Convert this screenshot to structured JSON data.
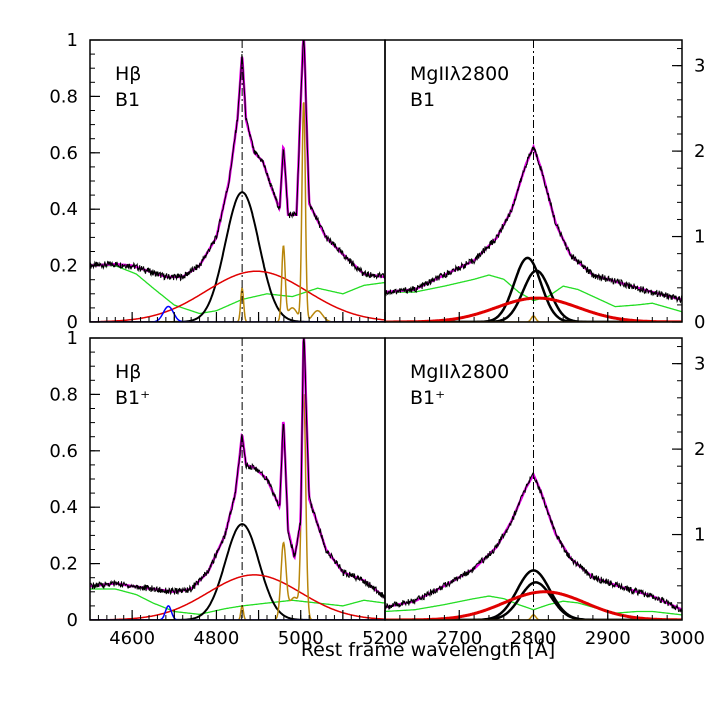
{
  "chart_data": {
    "type": "line",
    "xlabel": "Rest frame wavelength [Å]",
    "colors": {
      "observed": "#000000",
      "fit_total": "#e000e0",
      "broad_component": "#000000",
      "very_broad_component": "#e00000",
      "feii_template": "#22dd22",
      "narrow_lines": "#b8860b",
      "heii": "#0000ff"
    },
    "panels": [
      {
        "id": "hb-b1",
        "label_line1": "Hβ",
        "label_line2": "B1",
        "x_ticks": [],
        "y_ticks": [
          "0",
          "0.2",
          "0.4",
          "0.6",
          "0.8",
          "1"
        ],
        "y_tick_values": [
          0,
          0.2,
          0.4,
          0.6,
          0.8,
          1
        ],
        "y_axis_side": "left",
        "xlim": [
          4500,
          5200
        ],
        "ylim": [
          0,
          1
        ],
        "reference_line": 4861,
        "continuum": [
          [
            4500,
            0.2
          ],
          [
            4560,
            0.205
          ],
          [
            4600,
            0.2
          ],
          [
            4640,
            0.18
          ],
          [
            4680,
            0.16
          ],
          [
            4720,
            0.16
          ],
          [
            4760,
            0.2
          ],
          [
            4800,
            0.3
          ],
          [
            4830,
            0.5
          ],
          [
            4850,
            0.72
          ],
          [
            4861,
            0.95
          ],
          [
            4870,
            0.72
          ],
          [
            4890,
            0.6
          ],
          [
            4910,
            0.57
          ],
          [
            4930,
            0.48
          ],
          [
            4950,
            0.4
          ],
          [
            4959,
            0.63
          ],
          [
            4970,
            0.38
          ],
          [
            4990,
            0.38
          ],
          [
            5007,
            1.05
          ],
          [
            5020,
            0.42
          ],
          [
            5060,
            0.3
          ],
          [
            5100,
            0.24
          ],
          [
            5150,
            0.17
          ],
          [
            5200,
            0.16
          ]
        ],
        "components": [
          {
            "name": "broad",
            "color": "#000000",
            "gaussians": [
              {
                "center": 4861,
                "amp": 0.46,
                "sigma": 40
              }
            ],
            "width": 2
          },
          {
            "name": "very_broad",
            "color": "#e00000",
            "gaussians": [
              {
                "center": 4895,
                "amp": 0.18,
                "sigma": 120
              }
            ],
            "width": 1.5
          },
          {
            "name": "narrow",
            "color": "#b8860b",
            "gaussians": [
              {
                "center": 4861,
                "amp": 0.12,
                "sigma": 3.5
              },
              {
                "center": 4959,
                "amp": 0.26,
                "sigma": 4
              },
              {
                "center": 5007,
                "amp": 0.78,
                "sigma": 4
              },
              {
                "center": 4980,
                "amp": 0.05,
                "sigma": 12
              },
              {
                "center": 5040,
                "amp": 0.04,
                "sigma": 12
              }
            ],
            "width": 1.5
          },
          {
            "name": "heii",
            "color": "#0000ff",
            "gaussians": [
              {
                "center": 4686,
                "amp": 0.055,
                "sigma": 12
              }
            ],
            "width": 1.5
          }
        ],
        "feii": {
          "color": "#22dd22",
          "points": [
            [
              4500,
              0.2
            ],
            [
              4560,
              0.2
            ],
            [
              4610,
              0.17
            ],
            [
              4650,
              0.12
            ],
            [
              4700,
              0.06
            ],
            [
              4760,
              0.03
            ],
            [
              4800,
              0.04
            ],
            [
              4861,
              0.08
            ],
            [
              4920,
              0.1
            ],
            [
              4980,
              0.09
            ],
            [
              5040,
              0.12
            ],
            [
              5100,
              0.1
            ],
            [
              5150,
              0.13
            ],
            [
              5200,
              0.14
            ]
          ]
        }
      },
      {
        "id": "mg-b1",
        "label_line1": "MgIIλ2800",
        "label_line2": "B1",
        "x_ticks": [],
        "y_ticks": [
          "0",
          "1",
          "2",
          "3"
        ],
        "y_tick_values": [
          0,
          1,
          2,
          3
        ],
        "y_axis_side": "right",
        "xlim": [
          2600,
          3000
        ],
        "ylim": [
          0,
          3.3
        ],
        "reference_line": 2800,
        "continuum": [
          [
            2600,
            0.35
          ],
          [
            2640,
            0.38
          ],
          [
            2680,
            0.55
          ],
          [
            2720,
            0.72
          ],
          [
            2750,
            0.98
          ],
          [
            2770,
            1.3
          ],
          [
            2790,
            1.85
          ],
          [
            2800,
            2.05
          ],
          [
            2810,
            1.8
          ],
          [
            2830,
            1.15
          ],
          [
            2850,
            0.78
          ],
          [
            2880,
            0.55
          ],
          [
            2920,
            0.45
          ],
          [
            2960,
            0.35
          ],
          [
            3000,
            0.26
          ]
        ],
        "components": [
          {
            "name": "broad_a",
            "color": "#000000",
            "gaussians": [
              {
                "center": 2792,
                "amp": 0.75,
                "sigma": 18
              }
            ],
            "width": 2.5
          },
          {
            "name": "broad_b",
            "color": "#000000",
            "gaussians": [
              {
                "center": 2804,
                "amp": 0.6,
                "sigma": 18
              }
            ],
            "width": 2.5
          },
          {
            "name": "very_broad",
            "color": "#e00000",
            "gaussians": [
              {
                "center": 2805,
                "amp": 0.28,
                "sigma": 55
              }
            ],
            "width": 3
          },
          {
            "name": "narrow",
            "color": "#b8860b",
            "gaussians": [
              {
                "center": 2800,
                "amp": 0.07,
                "sigma": 3
              }
            ],
            "width": 1.5
          }
        ],
        "feii": {
          "color": "#22dd22",
          "points": [
            [
              2600,
              0.35
            ],
            [
              2640,
              0.35
            ],
            [
              2680,
              0.42
            ],
            [
              2720,
              0.5
            ],
            [
              2740,
              0.55
            ],
            [
              2760,
              0.5
            ],
            [
              2780,
              0.35
            ],
            [
              2800,
              0.25
            ],
            [
              2820,
              0.3
            ],
            [
              2840,
              0.42
            ],
            [
              2860,
              0.38
            ],
            [
              2880,
              0.3
            ],
            [
              2910,
              0.18
            ],
            [
              2940,
              0.2
            ],
            [
              2960,
              0.22
            ],
            [
              3000,
              0.12
            ]
          ]
        }
      },
      {
        "id": "hb-b1plus",
        "label_line1": "Hβ",
        "label_line2": "B1⁺",
        "x_ticks": [
          "4600",
          "4800",
          "5000",
          "5200"
        ],
        "x_tick_values": [
          4600,
          4800,
          5000,
          5200
        ],
        "y_ticks": [
          "0",
          "0.2",
          "0.4",
          "0.6",
          "0.8",
          "1"
        ],
        "y_tick_values": [
          0,
          0.2,
          0.4,
          0.6,
          0.8,
          1
        ],
        "y_axis_side": "left",
        "xlim": [
          4500,
          5200
        ],
        "ylim": [
          0,
          1
        ],
        "reference_line": 4861,
        "continuum": [
          [
            4500,
            0.12
          ],
          [
            4560,
            0.13
          ],
          [
            4600,
            0.12
          ],
          [
            4650,
            0.11
          ],
          [
            4700,
            0.1
          ],
          [
            4740,
            0.11
          ],
          [
            4780,
            0.17
          ],
          [
            4820,
            0.3
          ],
          [
            4845,
            0.45
          ],
          [
            4861,
            0.66
          ],
          [
            4870,
            0.55
          ],
          [
            4890,
            0.54
          ],
          [
            4920,
            0.5
          ],
          [
            4950,
            0.4
          ],
          [
            4959,
            0.72
          ],
          [
            4970,
            0.32
          ],
          [
            4985,
            0.22
          ],
          [
            5000,
            0.35
          ],
          [
            5007,
            1.05
          ],
          [
            5020,
            0.43
          ],
          [
            5060,
            0.25
          ],
          [
            5100,
            0.17
          ],
          [
            5150,
            0.14
          ],
          [
            5200,
            0.08
          ]
        ],
        "components": [
          {
            "name": "broad",
            "color": "#000000",
            "gaussians": [
              {
                "center": 4861,
                "amp": 0.34,
                "sigma": 40
              }
            ],
            "width": 2
          },
          {
            "name": "very_broad",
            "color": "#e00000",
            "gaussians": [
              {
                "center": 4890,
                "amp": 0.16,
                "sigma": 110
              }
            ],
            "width": 1.5
          },
          {
            "name": "narrow",
            "color": "#b8860b",
            "gaussians": [
              {
                "center": 4861,
                "amp": 0.05,
                "sigma": 3
              },
              {
                "center": 4959,
                "amp": 0.26,
                "sigma": 6
              },
              {
                "center": 5007,
                "amp": 0.78,
                "sigma": 5
              },
              {
                "center": 4985,
                "amp": 0.08,
                "sigma": 14
              }
            ],
            "width": 1.5
          },
          {
            "name": "heii",
            "color": "#0000ff",
            "gaussians": [
              {
                "center": 4686,
                "amp": 0.05,
                "sigma": 7
              }
            ],
            "width": 1.5
          }
        ],
        "feii": {
          "color": "#22dd22",
          "points": [
            [
              4500,
              0.11
            ],
            [
              4560,
              0.11
            ],
            [
              4610,
              0.09
            ],
            [
              4650,
              0.06
            ],
            [
              4700,
              0.03
            ],
            [
              4760,
              0.02
            ],
            [
              4820,
              0.04
            ],
            [
              4861,
              0.05
            ],
            [
              4920,
              0.06
            ],
            [
              4980,
              0.07
            ],
            [
              5040,
              0.06
            ],
            [
              5100,
              0.05
            ],
            [
              5150,
              0.07
            ],
            [
              5200,
              0.06
            ]
          ]
        }
      },
      {
        "id": "mg-b1plus",
        "label_line1": "MgIIλ2800",
        "label_line2": "B1⁺",
        "x_ticks": [
          "2700",
          "2800",
          "2900",
          "3000"
        ],
        "x_tick_values": [
          2700,
          2800,
          2900,
          3000
        ],
        "y_ticks": [
          "1",
          "2",
          "3"
        ],
        "y_tick_values": [
          1,
          2,
          3
        ],
        "y_axis_side": "right",
        "xlim": [
          2600,
          3000
        ],
        "ylim": [
          0,
          3.3
        ],
        "reference_line": 2800,
        "continuum": [
          [
            2600,
            0.15
          ],
          [
            2640,
            0.22
          ],
          [
            2680,
            0.4
          ],
          [
            2720,
            0.6
          ],
          [
            2750,
            0.85
          ],
          [
            2770,
            1.15
          ],
          [
            2790,
            1.55
          ],
          [
            2800,
            1.7
          ],
          [
            2810,
            1.5
          ],
          [
            2830,
            1.0
          ],
          [
            2850,
            0.72
          ],
          [
            2880,
            0.5
          ],
          [
            2920,
            0.38
          ],
          [
            2960,
            0.28
          ],
          [
            3000,
            0.12
          ]
        ],
        "components": [
          {
            "name": "broad_a",
            "color": "#000000",
            "gaussians": [
              {
                "center": 2800,
                "amp": 0.58,
                "sigma": 22
              }
            ],
            "width": 2.5
          },
          {
            "name": "broad_b",
            "color": "#000000",
            "gaussians": [
              {
                "center": 2803,
                "amp": 0.44,
                "sigma": 21
              }
            ],
            "width": 2.5
          },
          {
            "name": "very_broad",
            "color": "#e00000",
            "gaussians": [
              {
                "center": 2815,
                "amp": 0.33,
                "sigma": 55
              }
            ],
            "width": 3
          },
          {
            "name": "narrow",
            "color": "#b8860b",
            "gaussians": [
              {
                "center": 2800,
                "amp": 0.06,
                "sigma": 3
              }
            ],
            "width": 1.5
          }
        ],
        "feii": {
          "color": "#22dd22",
          "points": [
            [
              2600,
              0.1
            ],
            [
              2640,
              0.12
            ],
            [
              2680,
              0.18
            ],
            [
              2720,
              0.25
            ],
            [
              2740,
              0.28
            ],
            [
              2760,
              0.25
            ],
            [
              2780,
              0.18
            ],
            [
              2800,
              0.12
            ],
            [
              2820,
              0.18
            ],
            [
              2840,
              0.22
            ],
            [
              2860,
              0.2
            ],
            [
              2880,
              0.15
            ],
            [
              2910,
              0.08
            ],
            [
              2940,
              0.1
            ],
            [
              2960,
              0.1
            ],
            [
              3000,
              0.06
            ]
          ]
        }
      }
    ]
  }
}
